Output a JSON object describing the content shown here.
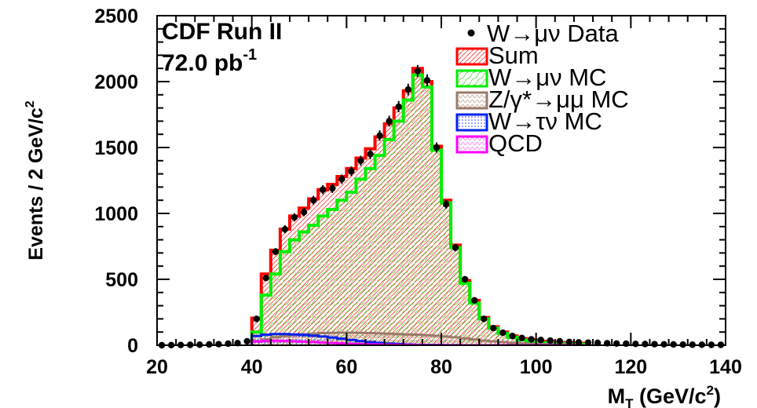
{
  "chart_data": {
    "type": "histogram",
    "xlabel": "M_T (GeV/c^2)",
    "ylabel": "Events / 2 GeV/c^2",
    "xlim": [
      20,
      140
    ],
    "ylim": [
      0,
      2500
    ],
    "x_ticks": [
      20,
      40,
      60,
      80,
      100,
      120,
      140
    ],
    "y_ticks": [
      0,
      500,
      1000,
      1500,
      2000,
      2500
    ],
    "annotations": [
      "CDF Run II",
      "72.0 pb",
      "-1"
    ],
    "legend_position": "top-right",
    "bin_edges_start": 40,
    "bin_width": 2,
    "series": [
      {
        "name": "Sum",
        "color": "#ff0000",
        "fill_color": "#ff6060",
        "values": [
          205,
          540,
          720,
          880,
          980,
          1040,
          1110,
          1180,
          1220,
          1280,
          1340,
          1420,
          1490,
          1580,
          1680,
          1800,
          1930,
          2100,
          2000,
          1510,
          1100,
          760,
          490,
          340,
          210,
          140,
          100,
          70,
          50,
          40,
          30,
          25,
          20,
          18,
          15
        ]
      },
      {
        "name": "W→μν MC",
        "color": "#00ee00",
        "fill_color": "#55cc44",
        "values": [
          100,
          380,
          540,
          710,
          800,
          860,
          910,
          980,
          1030,
          1100,
          1160,
          1260,
          1340,
          1440,
          1560,
          1700,
          1860,
          2050,
          1960,
          1480,
          1080,
          740,
          470,
          320,
          200,
          130,
          90,
          60,
          40,
          30,
          20,
          15,
          12,
          10,
          8
        ]
      },
      {
        "name": "Z/γ*→μμ MC",
        "color": "#9b7a6a",
        "fill_color": "#b09080",
        "values": [
          30,
          45,
          60,
          70,
          78,
          84,
          88,
          92,
          94,
          95,
          95,
          94,
          92,
          90,
          88,
          85,
          82,
          80,
          76,
          72,
          66,
          60,
          52,
          44,
          36,
          30,
          24,
          18,
          14,
          10,
          8,
          6,
          5,
          4,
          3
        ]
      },
      {
        "name": "W→τν MC",
        "color": "#0022ee",
        "fill_color": "#3344ee",
        "values": [
          70,
          80,
          85,
          85,
          82,
          78,
          72,
          66,
          58,
          50,
          40,
          32,
          24,
          18,
          13,
          9,
          6,
          4,
          3,
          2,
          1,
          1,
          0,
          0,
          0,
          0,
          0,
          0,
          0,
          0,
          0,
          0,
          0,
          0,
          0
        ]
      },
      {
        "name": "QCD",
        "color": "#ff00ff",
        "fill_color": "#ff66ff",
        "values": [
          28,
          32,
          34,
          33,
          30,
          27,
          24,
          20,
          17,
          14,
          11,
          9,
          7,
          5,
          4,
          3,
          2,
          2,
          1,
          1,
          1,
          0,
          0,
          0,
          0,
          0,
          0,
          0,
          0,
          0,
          0,
          0,
          0,
          0,
          0
        ]
      }
    ],
    "data_series": {
      "name": "W→μν Data",
      "color": "#000000",
      "x": [
        21,
        23,
        25,
        27,
        29,
        31,
        33,
        35,
        37,
        39,
        41,
        43,
        45,
        47,
        49,
        51,
        53,
        55,
        57,
        59,
        61,
        63,
        65,
        67,
        69,
        71,
        73,
        75,
        77,
        79,
        81,
        83,
        85,
        87,
        89,
        91,
        93,
        95,
        97,
        99,
        101,
        103,
        105,
        107,
        109,
        111,
        113,
        115,
        117,
        119,
        121,
        123,
        125,
        127,
        129,
        131,
        133,
        135,
        137,
        139
      ],
      "y": [
        0,
        1,
        2,
        3,
        4,
        6,
        8,
        12,
        16,
        30,
        200,
        510,
        710,
        880,
        970,
        1010,
        1100,
        1180,
        1190,
        1260,
        1320,
        1400,
        1450,
        1590,
        1700,
        1810,
        1940,
        2080,
        2010,
        1500,
        1070,
        740,
        500,
        340,
        200,
        130,
        95,
        70,
        55,
        45,
        40,
        35,
        30,
        25,
        22,
        20,
        18,
        15,
        13,
        12,
        10,
        9,
        8,
        7,
        6,
        5,
        4,
        4,
        3,
        3
      ]
    },
    "legend": [
      "W→μν Data",
      "Sum",
      "W→μν MC",
      "Z/γ*→μμ MC",
      "W→τν MC",
      "QCD"
    ]
  }
}
